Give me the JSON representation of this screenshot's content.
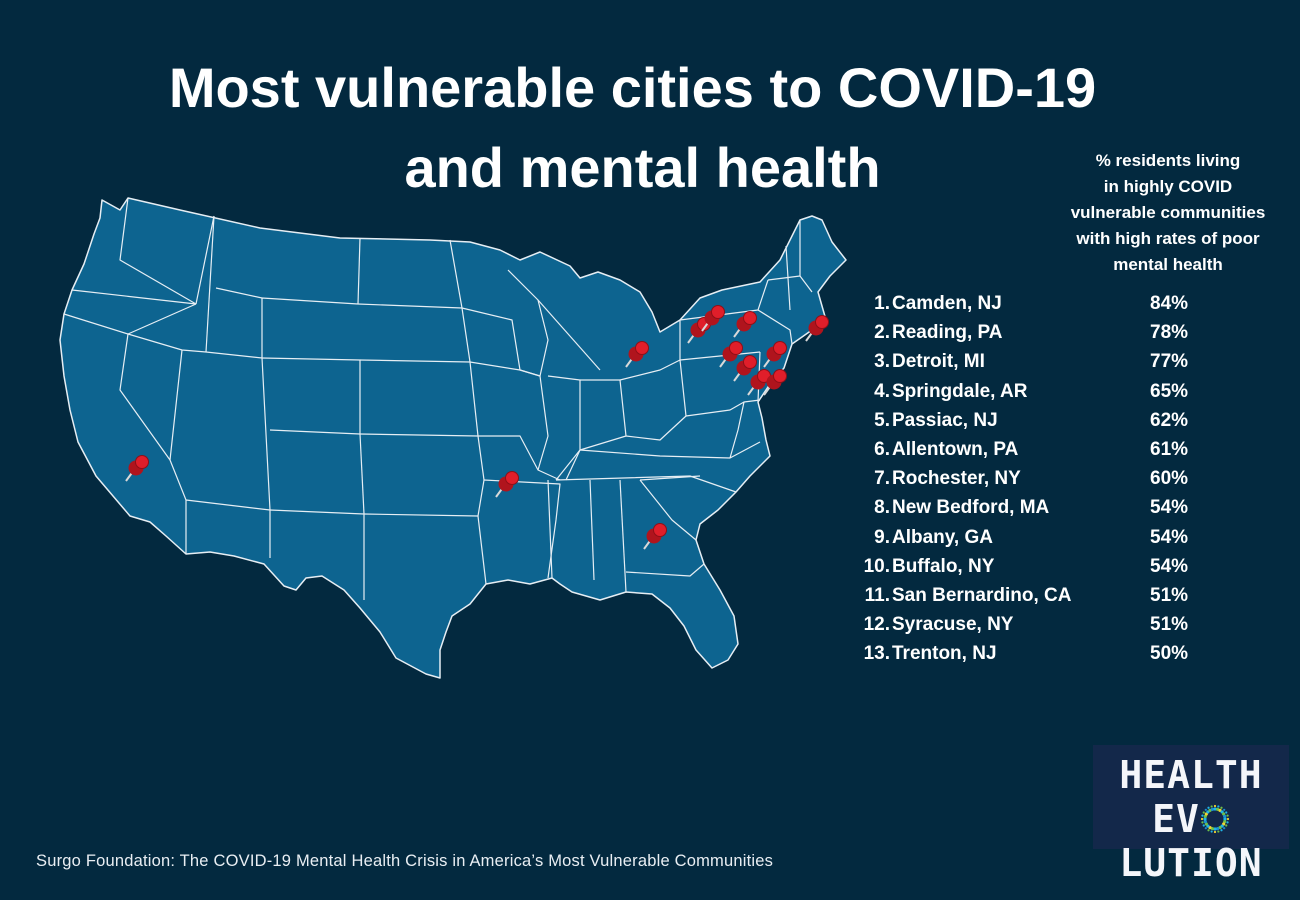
{
  "title": {
    "line1": "Most vulnerable cities to COVID-19",
    "line2": "and mental health"
  },
  "legend": {
    "heading": [
      "% residents living",
      "in highly COVID",
      "vulnerable communities",
      "with high rates of poor",
      "mental health"
    ]
  },
  "cities": [
    {
      "rank": "1.",
      "name": "Camden, NJ",
      "pct": "84%",
      "value": 84
    },
    {
      "rank": "2.",
      "name": "Reading, PA",
      "pct": "78%",
      "value": 78
    },
    {
      "rank": "3.",
      "name": "Detroit, MI",
      "pct": "77%",
      "value": 77
    },
    {
      "rank": "4.",
      "name": "Springdale, AR",
      "pct": "65%",
      "value": 65
    },
    {
      "rank": "5.",
      "name": "Passiac, NJ",
      "pct": "62%",
      "value": 62
    },
    {
      "rank": "6.",
      "name": "Allentown, PA",
      "pct": "61%",
      "value": 61
    },
    {
      "rank": "7.",
      "name": "Rochester, NY",
      "pct": "60%",
      "value": 60
    },
    {
      "rank": "8.",
      "name": "New Bedford, MA",
      "pct": "54%",
      "value": 54
    },
    {
      "rank": "9.",
      "name": "Albany, GA",
      "pct": "54%",
      "value": 54
    },
    {
      "rank": "10.",
      "name": "Buffalo, NY",
      "pct": "54%",
      "value": 54
    },
    {
      "rank": "11.",
      "name": "San Bernardino, CA",
      "pct": "51%",
      "value": 51
    },
    {
      "rank": "12.",
      "name": "Syracuse, NY",
      "pct": "51%",
      "value": 51
    },
    {
      "rank": "13.",
      "name": "Trenton, NJ",
      "pct": "50%",
      "value": 50
    }
  ],
  "logo": {
    "line1": "HEALTH",
    "line2_pre": "EV",
    "line2_post": "LUTION"
  },
  "source": "Surgo Foundation: The COVID-19 Mental Health Crisis in America’s Most Vulnerable Communities",
  "colors": {
    "background": "#03293f",
    "land": "#0d6490",
    "borders": "#e6eef4",
    "pin": "#e01e2a",
    "text": "#ffffff"
  },
  "icons": {
    "pin": "red-pushpin-icon"
  }
}
